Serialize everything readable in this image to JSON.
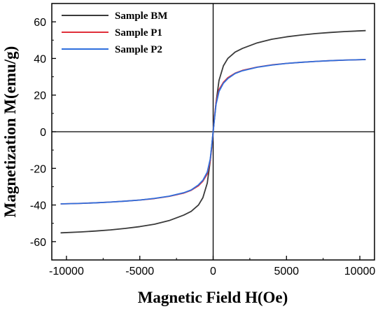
{
  "chart_data": {
    "type": "line",
    "title": "",
    "xlabel": "Magnetic Field H(Oe)",
    "ylabel": "Magnetization M(emu/g)",
    "xlim": [
      -11000,
      11000
    ],
    "ylim": [
      -70,
      70
    ],
    "xticks": [
      -10000,
      -5000,
      0,
      5000,
      10000
    ],
    "yticks": [
      -60,
      -40,
      -20,
      0,
      20,
      40,
      60
    ],
    "xtick_labels": [
      "-10000",
      "-5000",
      "0",
      "5000",
      "10000"
    ],
    "ytick_labels": [
      "-60",
      "-40",
      "-20",
      "0",
      "20",
      "40",
      "60"
    ],
    "legend_position": "top-left",
    "grid": false,
    "series": [
      {
        "name": "Sample BM",
        "color": "#3a3a3a",
        "x": [
          0,
          100,
          200,
          400,
          700,
          1000,
          1500,
          2000,
          3000,
          4000,
          5000,
          6000,
          7000,
          8000,
          9000,
          10400
        ],
        "y": [
          0,
          8,
          16,
          28,
          36,
          40,
          43.5,
          45.5,
          48.5,
          50.5,
          51.8,
          52.8,
          53.6,
          54.2,
          54.7,
          55.2
        ]
      },
      {
        "name": "Sample P1",
        "color": "#e0303a",
        "x": [
          0,
          100,
          200,
          400,
          700,
          1000,
          1500,
          2000,
          3000,
          4000,
          5000,
          6000,
          7000,
          8000,
          9000,
          10400
        ],
        "y": [
          0,
          9,
          16,
          23,
          27,
          29.5,
          32,
          33.5,
          35.3,
          36.5,
          37.3,
          37.9,
          38.4,
          38.8,
          39.1,
          39.4
        ]
      },
      {
        "name": "Sample P2",
        "color": "#2f6fdd",
        "x": [
          0,
          100,
          200,
          400,
          700,
          1000,
          1500,
          2000,
          3000,
          4000,
          5000,
          6000,
          7000,
          8000,
          9000,
          10400
        ],
        "y": [
          0,
          8,
          15,
          22,
          26.5,
          29,
          31.8,
          33.3,
          35.2,
          36.4,
          37.3,
          37.9,
          38.4,
          38.8,
          39.1,
          39.4
        ]
      }
    ]
  }
}
